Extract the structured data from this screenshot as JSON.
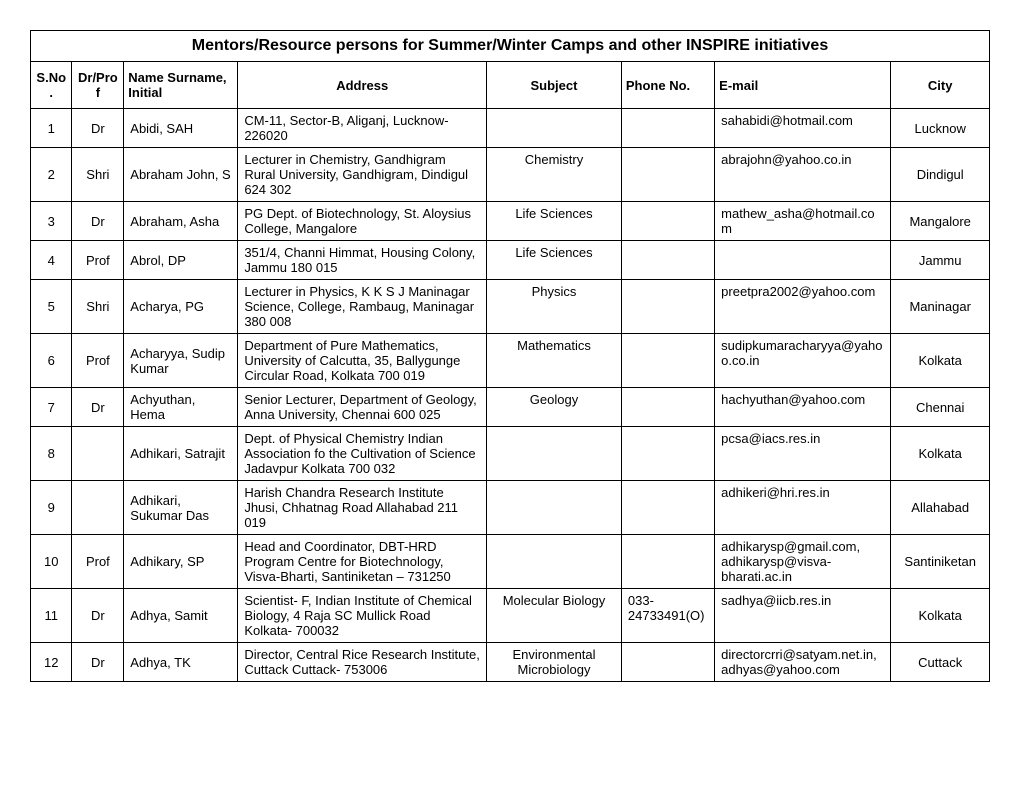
{
  "title": "Mentors/Resource persons for Summer/Winter Camps and other INSPIRE initiatives",
  "headers": {
    "sno": "S.No.",
    "drprof": "Dr/Prof",
    "name": "Name Surname, Initial",
    "address": "Address",
    "subject": "Subject",
    "phone": "Phone No.",
    "email": "E-mail",
    "city": "City"
  },
  "rows": [
    {
      "sno": "1",
      "drprof": "Dr",
      "name": "Abidi, SAH",
      "address": "CM-11, Sector-B, Aliganj, Lucknow- 226020",
      "subject": "",
      "phone": "",
      "email": "sahabidi@hotmail.com",
      "city": "Lucknow"
    },
    {
      "sno": "2",
      "drprof": "Shri",
      "name": "Abraham John, S",
      "address": "Lecturer in Chemistry, Gandhigram Rural University, Gandhigram, Dindigul 624 302",
      "subject": "Chemistry",
      "phone": "",
      "email": "abrajohn@yahoo.co.in",
      "city": "Dindigul"
    },
    {
      "sno": "3",
      "drprof": "Dr",
      "name": "Abraham, Asha",
      "address": "PG Dept. of Biotechnology, St. Aloysius College, Mangalore",
      "subject": "Life Sciences",
      "phone": "",
      "email": "mathew_asha@hotmail.com",
      "city": "Mangalore"
    },
    {
      "sno": "4",
      "drprof": "Prof",
      "name": "Abrol, DP",
      "address": "351/4, Channi Himmat, Housing Colony,  Jammu 180 015",
      "subject": "Life Sciences",
      "phone": "",
      "email": "",
      "city": "Jammu"
    },
    {
      "sno": "5",
      "drprof": "Shri",
      "name": "Acharya, PG",
      "address": "Lecturer in Physics, K K S J Maninagar Science, College, Rambaug, Maninagar 380 008",
      "subject": "Physics",
      "phone": "",
      "email": "preetpra2002@yahoo.com",
      "city": "Maninagar"
    },
    {
      "sno": "6",
      "drprof": "Prof",
      "name": "Acharyya, Sudip Kumar",
      "address": "Department of Pure Mathematics, University of Calcutta, 35, Ballygunge Circular Road, Kolkata 700 019",
      "subject": "Mathematics",
      "phone": "",
      "email": "sudipkumaracharyya@yahoo.co.in",
      "city": "Kolkata"
    },
    {
      "sno": "7",
      "drprof": "Dr",
      "name": "Achyuthan, Hema",
      "address": "Senior Lecturer, Department of Geology, Anna University, Chennai 600 025",
      "subject": "Geology",
      "phone": "",
      "email": "hachyuthan@yahoo.com",
      "city": "Chennai"
    },
    {
      "sno": "8",
      "drprof": "",
      "name": "Adhikari, Satrajit",
      "address": "Dept. of Physical Chemistry Indian Association fo the Cultivation of Science Jadavpur Kolkata 700 032",
      "subject": "",
      "phone": "",
      "email": "pcsa@iacs.res.in",
      "city": "Kolkata"
    },
    {
      "sno": "9",
      "drprof": "",
      "name": "Adhikari, Sukumar Das",
      "address": "Harish Chandra Research Institute Jhusi, Chhatnag Road Allahabad 211 019",
      "subject": "",
      "phone": "",
      "email": "adhikeri@hri.res.in",
      "city": "Allahabad"
    },
    {
      "sno": "10",
      "drprof": "Prof",
      "name": "Adhikary, SP",
      "address": "Head and Coordinator, DBT-HRD Program Centre for Biotechnology, Visva-Bharti, Santiniketan – 731250",
      "subject": "",
      "phone": "",
      "email": "adhikarysp@gmail.com, adhikarysp@visva-bharati.ac.in",
      "city": "Santiniketan"
    },
    {
      "sno": "11",
      "drprof": "Dr",
      "name": "Adhya, Samit",
      "address": "Scientist- F, Indian Institute of Chemical Biology, 4 Raja SC Mullick Road Kolkata- 700032",
      "subject": "Molecular Biology",
      "phone": "033-24733491(O)",
      "email": "sadhya@iicb.res.in",
      "city": "Kolkata"
    },
    {
      "sno": "12",
      "drprof": "Dr",
      "name": "Adhya, TK",
      "address": "Director, Central Rice Research Institute, Cuttack Cuttack- 753006",
      "subject": "Environmental Microbiology",
      "phone": "",
      "email": "directorcrri@satyam.net.in, adhyas@yahoo.com",
      "city": "Cuttack"
    }
  ]
}
